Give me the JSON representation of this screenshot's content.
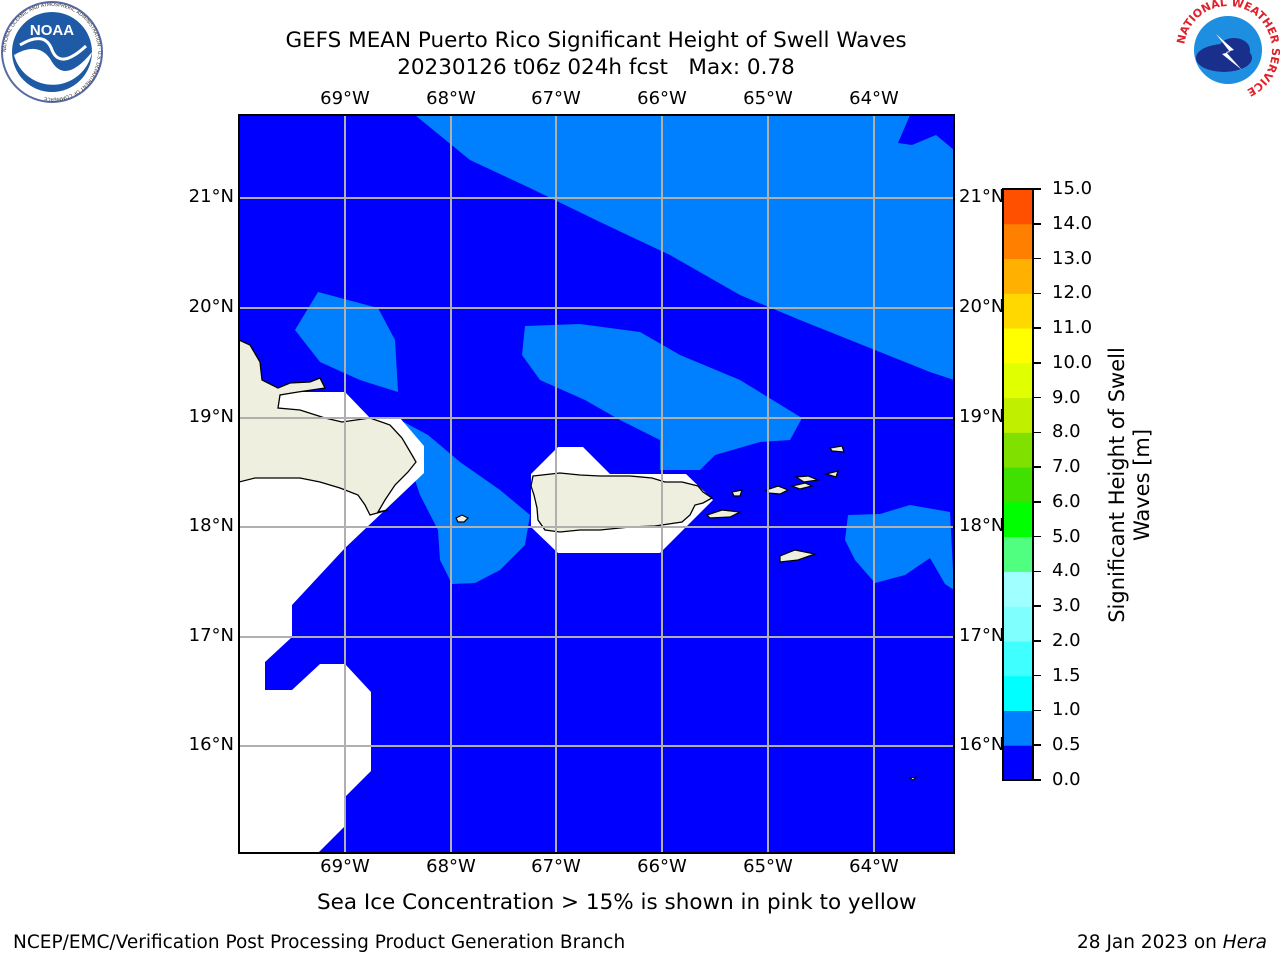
{
  "header": {
    "title_line1": "GEFS MEAN Puerto Rico Significant Height of Swell Waves",
    "title_line2": "20230126 t06z 024h fcst   Max: 0.78"
  },
  "logos": {
    "left": "NOAA",
    "left_ring": "NATIONAL OCEANIC AND ATMOSPHERIC ADMINISTRATION · U.S. DEPARTMENT OF COMMERCE",
    "right_ring": "NATIONAL WEATHER SERVICE"
  },
  "map": {
    "lon_labels": [
      "69°W",
      "68°W",
      "67°W",
      "66°W",
      "65°W",
      "64°W"
    ],
    "lat_labels": [
      "21°N",
      "20°N",
      "19°N",
      "18°N",
      "17°N",
      "16°N"
    ],
    "lon_values": [
      -69,
      -68,
      -67,
      -66,
      -65,
      -64
    ],
    "lat_values": [
      21,
      20,
      19,
      18,
      17,
      16
    ],
    "extent": {
      "lon": [
        -70,
        -63.25
      ],
      "lat": [
        15,
        21.75
      ]
    },
    "colors": {
      "band_0_0_5": "#0000ff",
      "band_0_5_1_0": "#0080ff",
      "land": "#efefdf",
      "nodata": "#ffffff",
      "grid": "#b0b0b0"
    }
  },
  "colorbar": {
    "label_line1": "Significant Height of Swell",
    "label_line2": "Waves [m]",
    "ticks": [
      "0.0",
      "0.5",
      "1.0",
      "1.5",
      "2.0",
      "3.0",
      "4.0",
      "5.0",
      "6.0",
      "7.0",
      "8.0",
      "9.0",
      "10.0",
      "11.0",
      "12.0",
      "13.0",
      "14.0",
      "15.0"
    ],
    "colors": [
      "#0000ff",
      "#0080ff",
      "#00ffff",
      "#40ffff",
      "#80ffff",
      "#a0ffff",
      "#50ff80",
      "#00ff00",
      "#40e000",
      "#80e000",
      "#c0f000",
      "#e0ff00",
      "#ffff00",
      "#ffd800",
      "#ffb000",
      "#ff8000",
      "#ff5000",
      "#ff2000",
      "#ff0000"
    ]
  },
  "notes": {
    "sea_ice": "Sea Ice Concentration > 15% is shown in pink to yellow"
  },
  "footer": {
    "left": "NCEP/EMC/Verification Post Processing Product Generation Branch",
    "right_date": "28 Jan 2023 on ",
    "right_machine": "Hera"
  }
}
